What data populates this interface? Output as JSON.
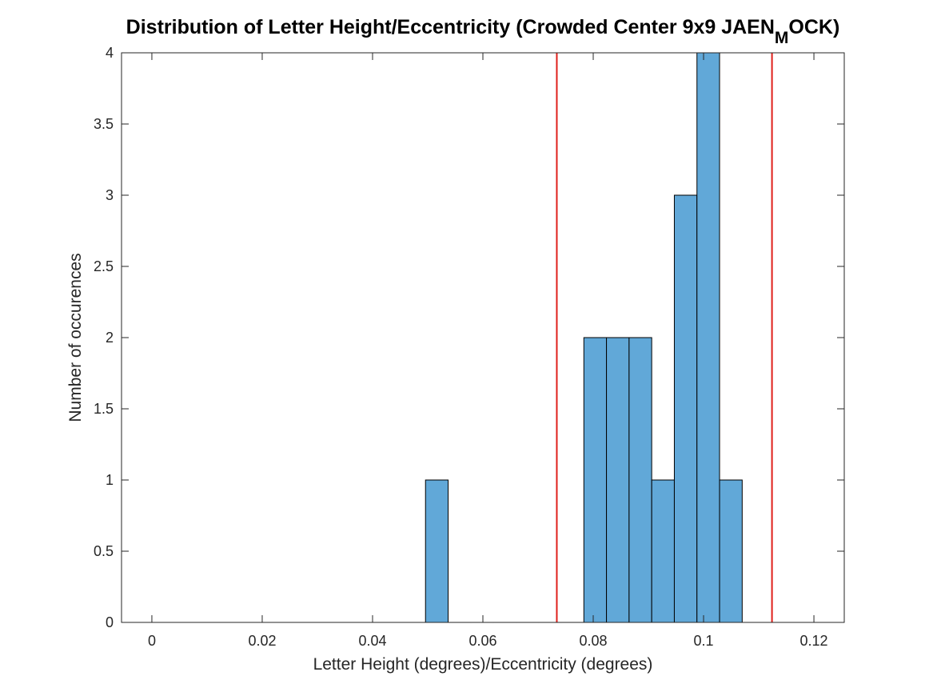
{
  "chart_data": {
    "type": "bar",
    "title": "Distribution of Letter Height/Eccentricity (Crowded Center 9x9 JAEN",
    "title_subscript": "M",
    "title_suffix": "OCK)",
    "xlabel": "Letter Height (degrees)/Eccentricity (degrees)",
    "ylabel": "Number of occurences",
    "xlim": [
      -0.0055,
      0.1255
    ],
    "ylim": [
      0,
      4
    ],
    "xticks": [
      "0",
      "0.02",
      "0.04",
      "0.06",
      "0.08",
      "0.1",
      "0.12"
    ],
    "yticks": [
      "0",
      "0.5",
      "1",
      "1.5",
      "2",
      "2.5",
      "3",
      "3.5",
      "4"
    ],
    "bin_width": 0.0041,
    "bins": [
      {
        "start": 0.0496,
        "count": 1
      },
      {
        "start": 0.0537,
        "count": 0
      },
      {
        "start": 0.0578,
        "count": 0
      },
      {
        "start": 0.0619,
        "count": 0
      },
      {
        "start": 0.066,
        "count": 0
      },
      {
        "start": 0.0701,
        "count": 0
      },
      {
        "start": 0.0742,
        "count": 0
      },
      {
        "start": 0.0783,
        "count": 2
      },
      {
        "start": 0.0824,
        "count": 2
      },
      {
        "start": 0.0865,
        "count": 2
      },
      {
        "start": 0.0906,
        "count": 1
      },
      {
        "start": 0.0947,
        "count": 3
      },
      {
        "start": 0.0988,
        "count": 4
      },
      {
        "start": 0.1029,
        "count": 1
      }
    ],
    "vlines": [
      0.0734,
      0.1124
    ],
    "colors": {
      "bar": "#61a8d8",
      "edge": "#000000",
      "vline": "#e0201b",
      "axis": "#262626"
    },
    "grid": false
  }
}
